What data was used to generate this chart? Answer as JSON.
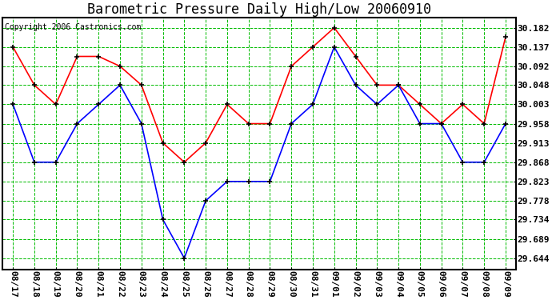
{
  "title": "Barometric Pressure Daily High/Low 20060910",
  "copyright": "Copyright 2006 Castronics.com",
  "background_color": "#ffffff",
  "plot_bg_color": "#ffffff",
  "grid_color": "#00bb00",
  "grid_linestyle": "--",
  "high_color": "#ff0000",
  "low_color": "#0000ff",
  "marker": "+",
  "marker_size": 5,
  "marker_color": "#000000",
  "dates": [
    "08/17",
    "08/18",
    "08/19",
    "08/20",
    "08/21",
    "08/22",
    "08/23",
    "08/24",
    "08/25",
    "08/26",
    "08/27",
    "08/28",
    "08/29",
    "08/30",
    "08/31",
    "09/01",
    "09/02",
    "09/03",
    "09/04",
    "09/05",
    "09/06",
    "09/07",
    "09/08",
    "09/09"
  ],
  "high_values": [
    30.137,
    30.048,
    30.003,
    30.115,
    30.115,
    30.092,
    30.048,
    29.913,
    29.868,
    29.913,
    30.003,
    29.958,
    29.958,
    30.092,
    30.137,
    30.182,
    30.115,
    30.048,
    30.048,
    30.003,
    29.958,
    30.003,
    29.958,
    30.16
  ],
  "low_values": [
    30.003,
    29.868,
    29.868,
    29.958,
    30.003,
    30.048,
    29.958,
    29.734,
    29.644,
    29.778,
    29.823,
    29.823,
    29.823,
    29.958,
    30.003,
    30.137,
    30.048,
    30.003,
    30.048,
    29.958,
    29.958,
    29.868,
    29.868,
    29.958
  ],
  "yticks": [
    29.644,
    29.689,
    29.734,
    29.778,
    29.823,
    29.868,
    29.913,
    29.958,
    30.003,
    30.048,
    30.092,
    30.137,
    30.182
  ],
  "ylim": [
    29.617,
    30.205
  ],
  "title_fontsize": 12,
  "tick_fontsize": 8,
  "copyright_fontsize": 7
}
